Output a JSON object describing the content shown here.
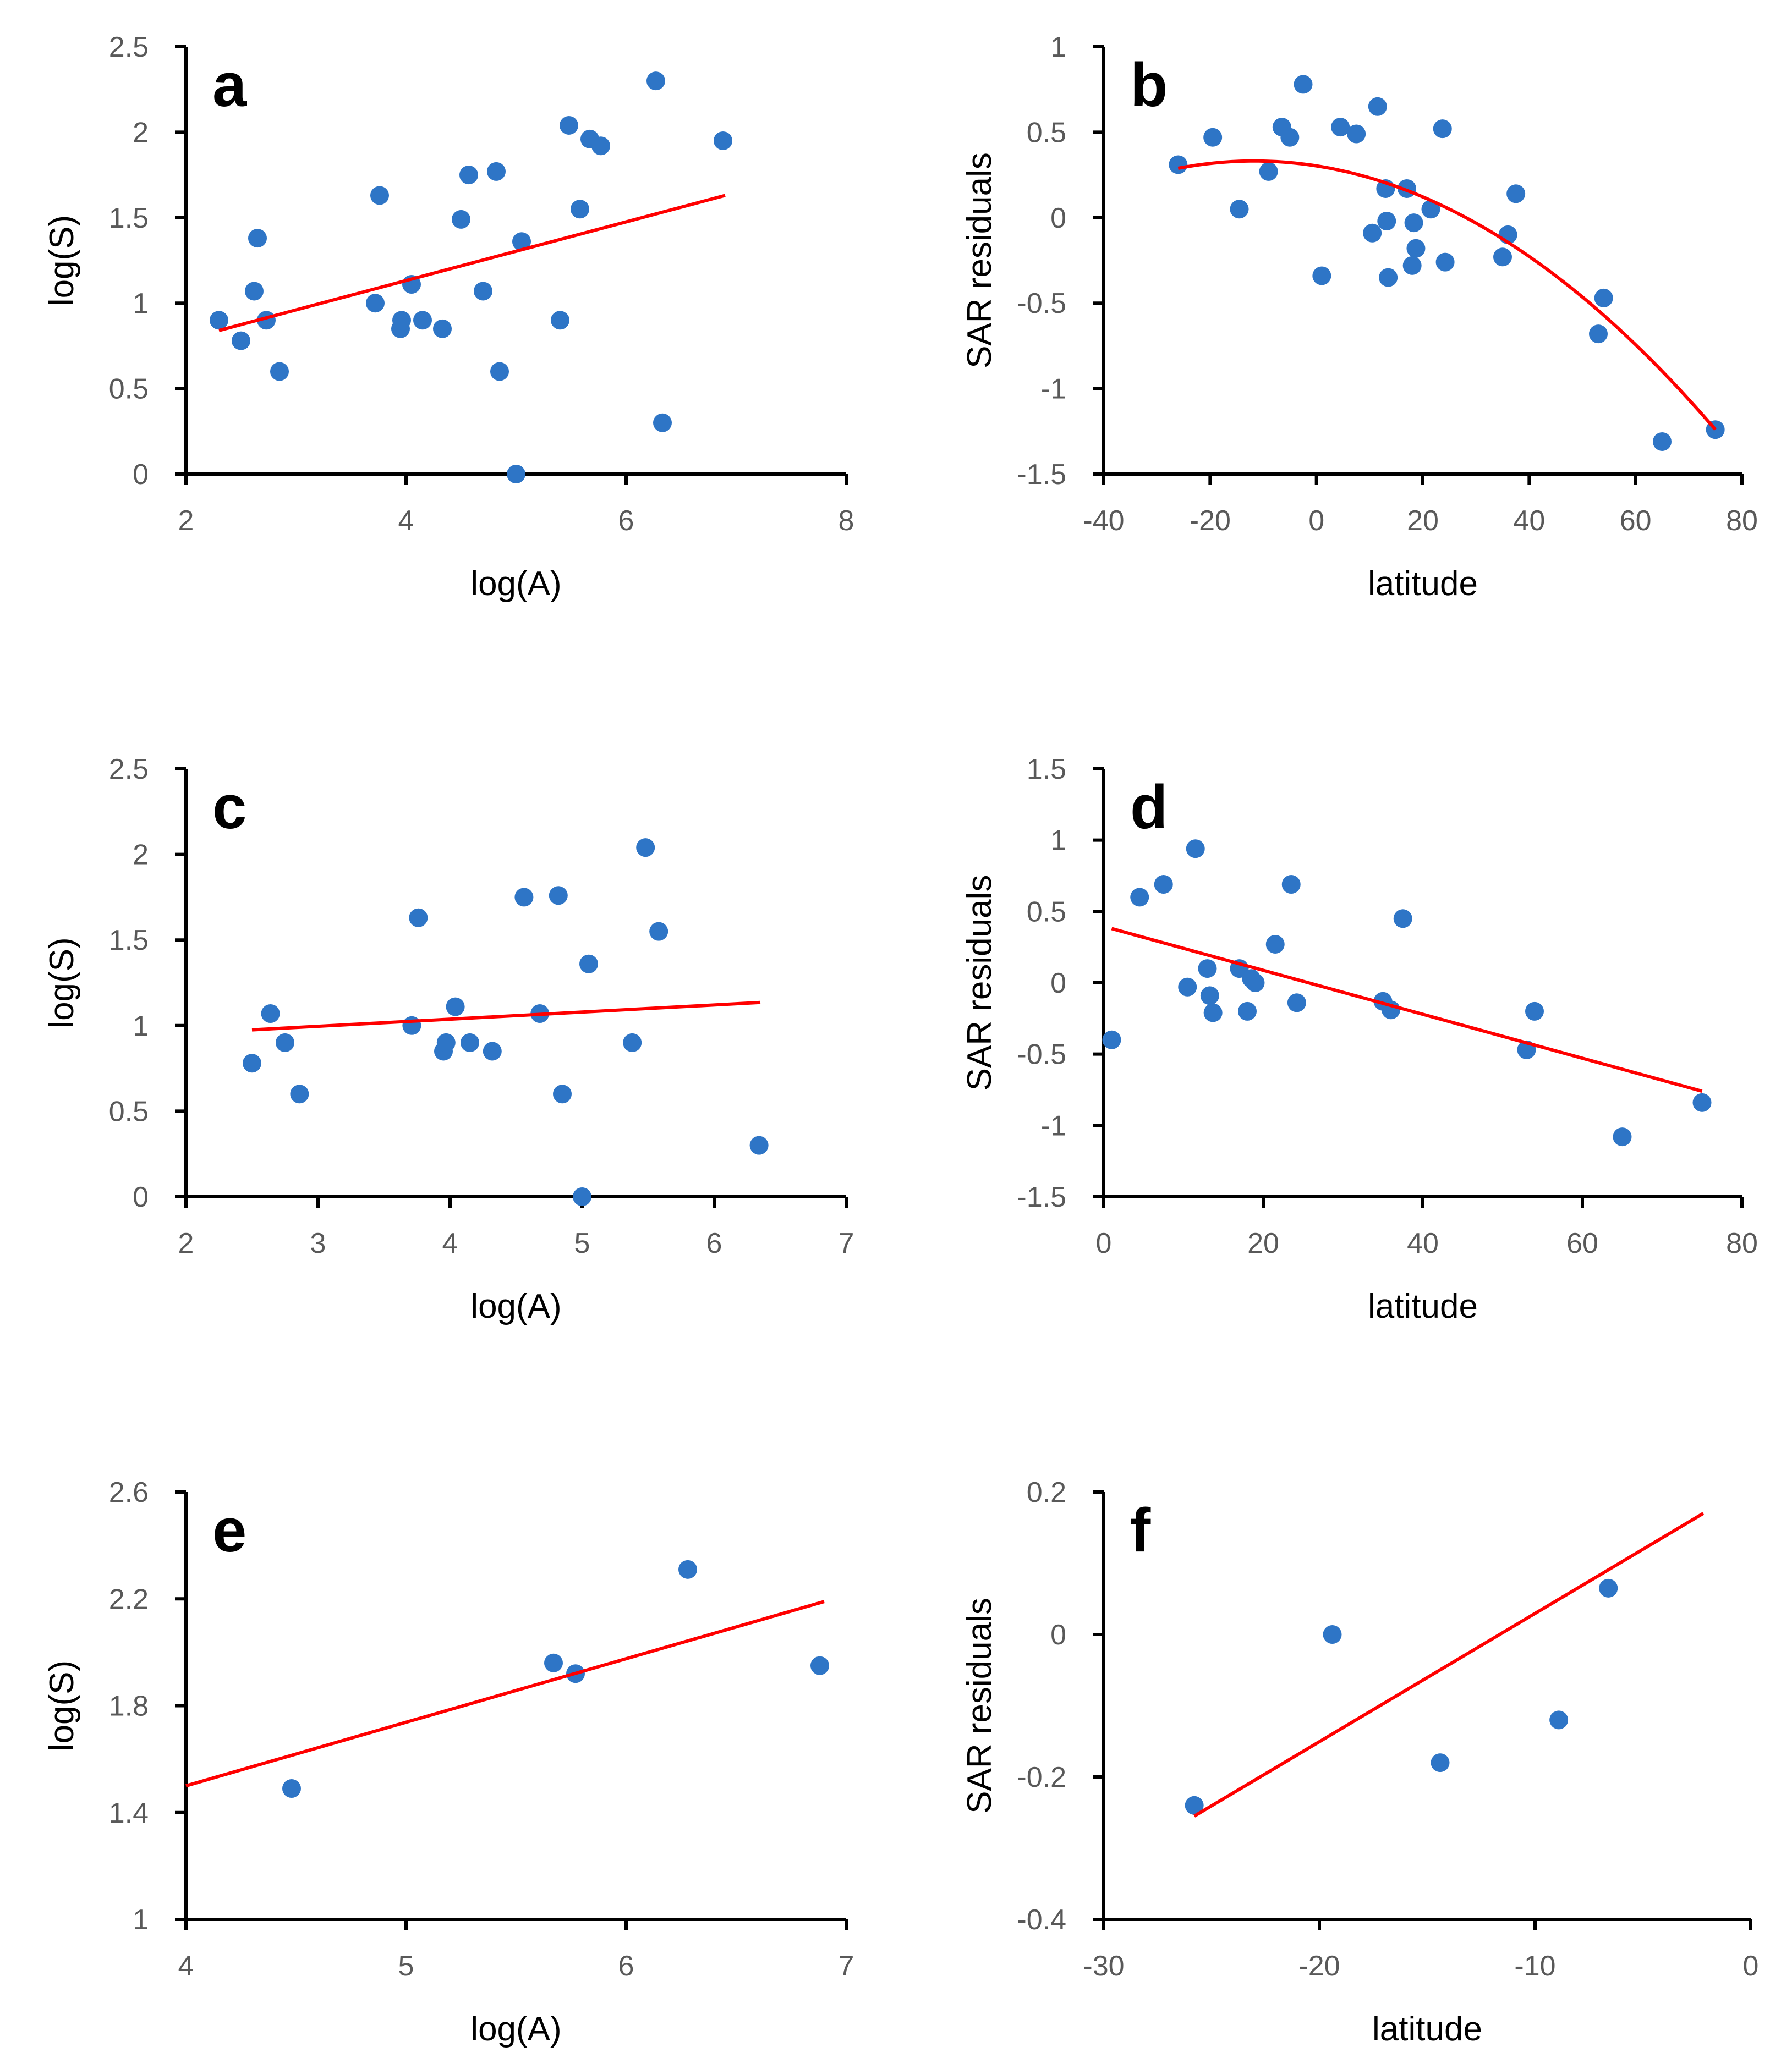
{
  "colors": {
    "points": "#2e75c6",
    "fit": "#ff0000",
    "axis": "#000000"
  },
  "chart_data": [
    {
      "id": "a",
      "type": "scatter",
      "panel_label": "a",
      "xlabel": "log(A)",
      "ylabel": "log(S)",
      "xlim": [
        2,
        8
      ],
      "ylim": [
        0,
        2.5
      ],
      "xticks": [
        "2",
        "4",
        "6",
        "8"
      ],
      "yticks": [
        "0",
        "0.5",
        "1",
        "1.5",
        "2",
        "2.5"
      ],
      "points": [
        [
          2.3,
          0.9
        ],
        [
          2.5,
          0.78
        ],
        [
          2.62,
          1.07
        ],
        [
          2.65,
          1.38
        ],
        [
          2.73,
          0.9
        ],
        [
          2.85,
          0.6
        ],
        [
          3.72,
          1.0
        ],
        [
          3.76,
          1.63
        ],
        [
          3.95,
          0.85
        ],
        [
          3.96,
          0.9
        ],
        [
          4.05,
          1.11
        ],
        [
          4.15,
          0.9
        ],
        [
          4.33,
          0.85
        ],
        [
          4.5,
          1.49
        ],
        [
          4.57,
          1.75
        ],
        [
          4.7,
          1.07
        ],
        [
          4.82,
          1.77
        ],
        [
          4.85,
          0.6
        ],
        [
          5.0,
          0.0
        ],
        [
          5.05,
          1.36
        ],
        [
          5.4,
          0.9
        ],
        [
          5.48,
          2.04
        ],
        [
          5.58,
          1.55
        ],
        [
          5.67,
          1.96
        ],
        [
          5.77,
          1.92
        ],
        [
          6.27,
          2.3
        ],
        [
          6.33,
          0.3
        ],
        [
          6.88,
          1.95
        ]
      ],
      "fit": {
        "kind": "linear",
        "x": [
          2.3,
          6.9
        ],
        "y": [
          0.84,
          1.63
        ]
      }
    },
    {
      "id": "b",
      "type": "scatter",
      "panel_label": "b",
      "xlabel": "latitude",
      "ylabel": "SAR residuals",
      "xlim": [
        -40,
        80
      ],
      "ylim": [
        -1.5,
        1
      ],
      "xticks": [
        "-40",
        "-20",
        "0",
        "20",
        "40",
        "60",
        "80"
      ],
      "yticks": [
        "-1.5",
        "-1",
        "-0.5",
        "0",
        "0.5",
        "1"
      ],
      "points": [
        [
          -26,
          0.31
        ],
        [
          -19.5,
          0.47
        ],
        [
          -14.5,
          0.05
        ],
        [
          -9,
          0.27
        ],
        [
          -6.5,
          0.53
        ],
        [
          -5,
          0.47
        ],
        [
          -2.5,
          0.78
        ],
        [
          1,
          -0.34
        ],
        [
          4.5,
          0.53
        ],
        [
          7.5,
          0.49
        ],
        [
          10.5,
          -0.09
        ],
        [
          11.5,
          0.65
        ],
        [
          13,
          0.17
        ],
        [
          13.2,
          -0.02
        ],
        [
          13.5,
          -0.35
        ],
        [
          17,
          0.17
        ],
        [
          18,
          -0.28
        ],
        [
          18.3,
          -0.03
        ],
        [
          18.7,
          -0.18
        ],
        [
          21.5,
          0.05
        ],
        [
          23.7,
          0.52
        ],
        [
          24.2,
          -0.26
        ],
        [
          35,
          -0.23
        ],
        [
          36,
          -0.1
        ],
        [
          37.5,
          0.14
        ],
        [
          53,
          -0.68
        ],
        [
          54,
          -0.47
        ],
        [
          65,
          -1.31
        ],
        [
          75,
          -1.24
        ]
      ],
      "fit": {
        "kind": "quadratic",
        "x": [
          -26,
          75
        ],
        "coef": [
          0.303,
          -0.00489,
          -0.000209
        ]
      }
    },
    {
      "id": "c",
      "type": "scatter",
      "panel_label": "c",
      "xlabel": "log(A)",
      "ylabel": "log(S)",
      "xlim": [
        2,
        7
      ],
      "ylim": [
        0,
        2.5
      ],
      "xticks": [
        "2",
        "3",
        "4",
        "5",
        "6",
        "7"
      ],
      "yticks": [
        "0",
        "0.5",
        "1",
        "1.5",
        "2",
        "2.5"
      ],
      "points": [
        [
          2.5,
          0.78
        ],
        [
          2.64,
          1.07
        ],
        [
          2.75,
          0.9
        ],
        [
          2.86,
          0.6
        ],
        [
          3.71,
          1.0
        ],
        [
          3.76,
          1.63
        ],
        [
          3.95,
          0.85
        ],
        [
          3.97,
          0.9
        ],
        [
          4.04,
          1.11
        ],
        [
          4.15,
          0.9
        ],
        [
          4.32,
          0.85
        ],
        [
          4.56,
          1.75
        ],
        [
          4.68,
          1.07
        ],
        [
          4.82,
          1.76
        ],
        [
          4.85,
          0.6
        ],
        [
          5.0,
          0.0
        ],
        [
          5.05,
          1.36
        ],
        [
          5.38,
          0.9
        ],
        [
          5.48,
          2.04
        ],
        [
          5.58,
          1.55
        ],
        [
          6.34,
          0.3
        ]
      ],
      "fit": {
        "kind": "linear",
        "x": [
          2.5,
          6.35
        ],
        "y": [
          0.975,
          1.135
        ]
      }
    },
    {
      "id": "d",
      "type": "scatter",
      "panel_label": "d",
      "xlabel": "latitude",
      "ylabel": "SAR residuals",
      "xlim": [
        0,
        80
      ],
      "ylim": [
        -1.5,
        1.5
      ],
      "xticks": [
        "0",
        "20",
        "40",
        "60",
        "80"
      ],
      "yticks": [
        "-1.5",
        "-1",
        "-0.5",
        "0",
        "0.5",
        "1",
        "1.5"
      ],
      "points": [
        [
          1,
          -0.4
        ],
        [
          4.5,
          0.6
        ],
        [
          7.5,
          0.69
        ],
        [
          10.5,
          -0.03
        ],
        [
          11.5,
          0.94
        ],
        [
          13,
          0.1
        ],
        [
          13.3,
          -0.09
        ],
        [
          13.7,
          -0.21
        ],
        [
          17,
          0.1
        ],
        [
          18,
          -0.2
        ],
        [
          18.5,
          0.03
        ],
        [
          19,
          0.0
        ],
        [
          21.5,
          0.27
        ],
        [
          23.5,
          0.69
        ],
        [
          24.2,
          -0.14
        ],
        [
          35,
          -0.13
        ],
        [
          36,
          -0.19
        ],
        [
          37.5,
          0.45
        ],
        [
          53,
          -0.47
        ],
        [
          54,
          -0.2
        ],
        [
          65,
          -1.08
        ],
        [
          75,
          -0.84
        ]
      ],
      "fit": {
        "kind": "linear",
        "x": [
          1,
          75
        ],
        "y": [
          0.38,
          -0.76
        ]
      }
    },
    {
      "id": "e",
      "type": "scatter",
      "panel_label": "e",
      "xlabel": "log(A)",
      "ylabel": "log(S)",
      "xlim": [
        4,
        7
      ],
      "ylim": [
        1,
        2.6
      ],
      "xticks": [
        "4",
        "5",
        "6",
        "7"
      ],
      "yticks": [
        "1",
        "1.4",
        "1.8",
        "2.2",
        "2.6"
      ],
      "points": [
        [
          4.48,
          1.49
        ],
        [
          5.67,
          1.96
        ],
        [
          5.77,
          1.92
        ],
        [
          6.28,
          2.31
        ],
        [
          6.88,
          1.95
        ]
      ],
      "fit": {
        "kind": "linear",
        "x": [
          4.0,
          6.9
        ],
        "y": [
          1.5,
          2.19
        ]
      }
    },
    {
      "id": "f",
      "type": "scatter",
      "panel_label": "f",
      "xlabel": "latitude",
      "ylabel": "SAR residuals",
      "xlim": [
        -30,
        0
      ],
      "ylim": [
        -0.4,
        0.2
      ],
      "xticks": [
        "-30",
        "-20",
        "-10",
        "0"
      ],
      "yticks": [
        "-0.4",
        "-0.2",
        "0",
        "0.2"
      ],
      "points": [
        [
          -25.8,
          -0.24
        ],
        [
          -19.4,
          0.0
        ],
        [
          -14.4,
          -0.18
        ],
        [
          -8.9,
          -0.12
        ],
        [
          -6.6,
          0.065
        ]
      ],
      "fit": {
        "kind": "linear",
        "x": [
          -25.8,
          -2.2
        ],
        "y": [
          -0.255,
          0.17
        ]
      }
    }
  ]
}
